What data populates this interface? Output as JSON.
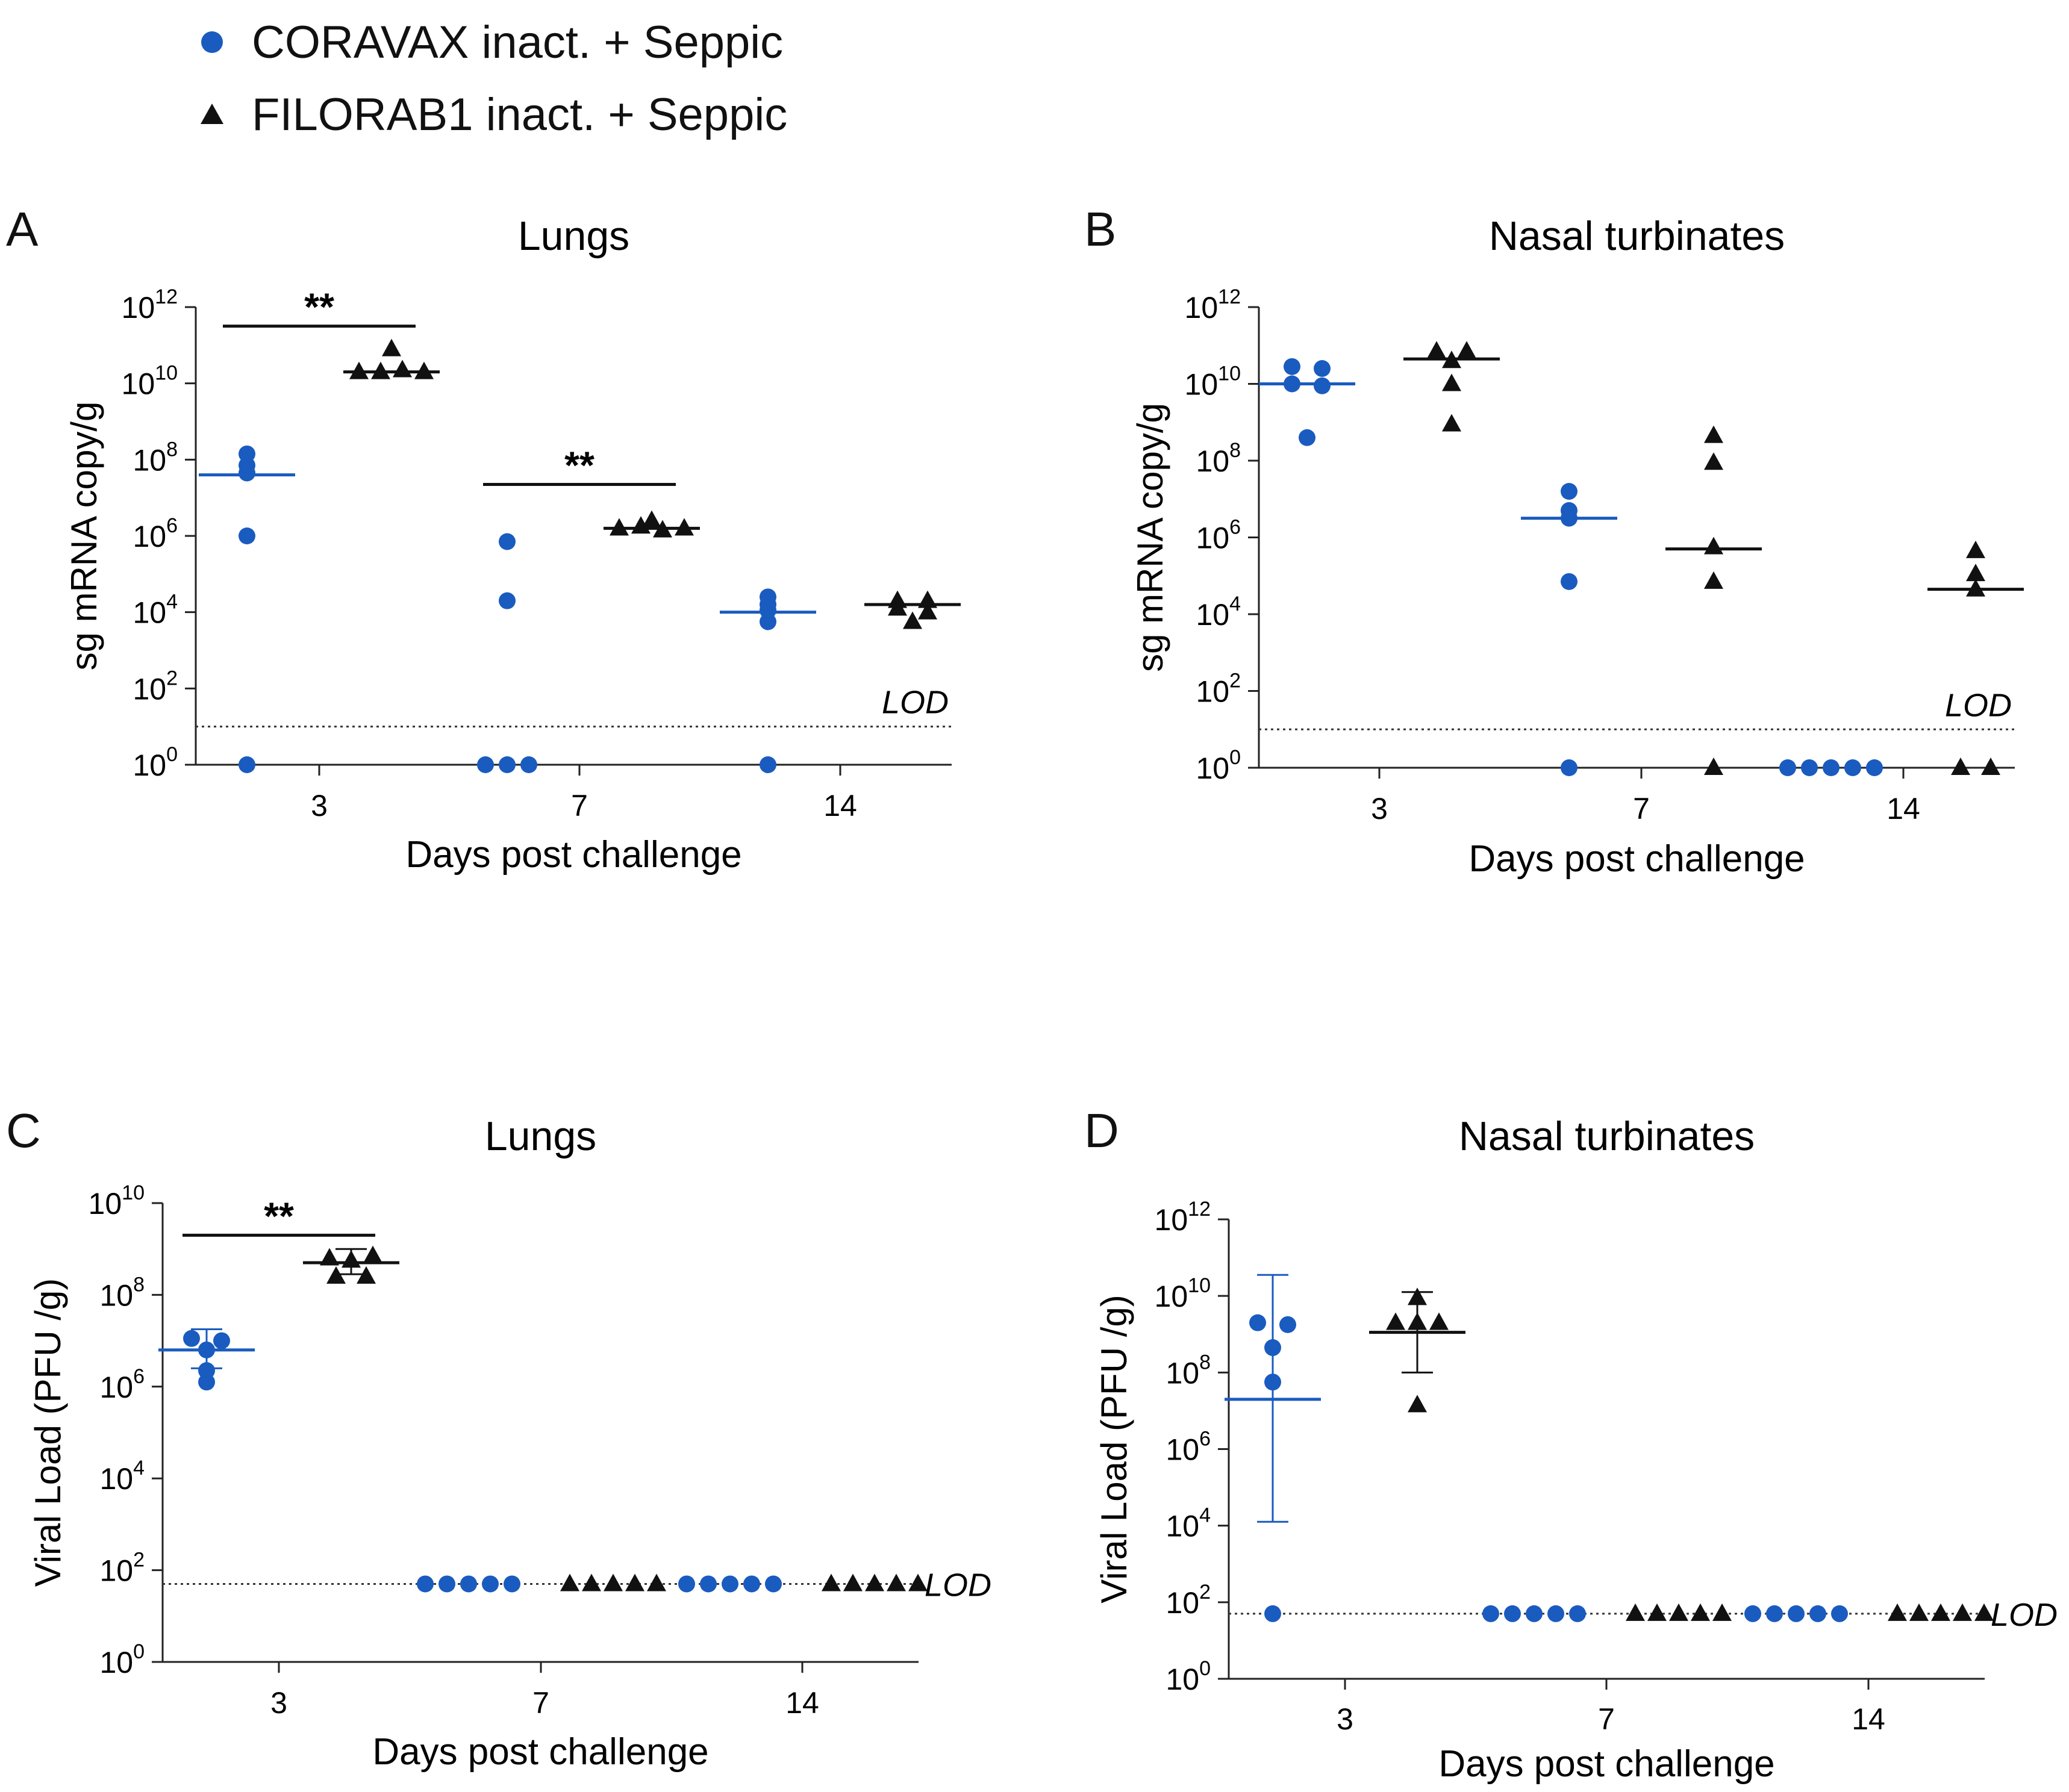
{
  "legend": [
    {
      "label": "CORAVAX inact. + Seppic",
      "marker": "circle",
      "color": "#1a5bbf"
    },
    {
      "label": "FILORAB1 inact. + Seppic",
      "marker": "triangle",
      "color": "#111111"
    }
  ],
  "panels": [
    {
      "letter": "A"
    },
    {
      "letter": "B"
    },
    {
      "letter": "C"
    },
    {
      "letter": "D"
    }
  ],
  "chart_data": [
    {
      "type": "scatter",
      "panel": "A",
      "title": "Lungs",
      "xlabel": "Days post challenge",
      "ylabel": "sg mRNA copy/g",
      "yscale": "log10",
      "ylim_exp": [
        0,
        12
      ],
      "ytick_exponents": [
        0,
        2,
        4,
        6,
        8,
        10,
        12
      ],
      "categories": [
        "3",
        "7",
        "14"
      ],
      "lod": {
        "value_exp": 1,
        "label": "LOD",
        "label_pos": "above-right"
      },
      "series": [
        {
          "name": "CORAVAX inact. + Seppic",
          "marker": "circle",
          "color": "#1a5bbf",
          "groups": [
            {
              "day": "3",
              "log_values": [
                8.15,
                7.65,
                7.85,
                6.0,
                0
              ],
              "median_log": 7.6
            },
            {
              "day": "7",
              "log_values": [
                5.85,
                4.3,
                0,
                0,
                0
              ],
              "median_log": null
            },
            {
              "day": "14",
              "log_values": [
                4.05,
                4.4,
                4.2,
                3.75,
                0
              ],
              "median_log": 4.0
            }
          ]
        },
        {
          "name": "FILORAB1 inact. + Seppic",
          "marker": "triangle",
          "color": "#111111",
          "groups": [
            {
              "day": "3",
              "log_values": [
                10.3,
                10.9,
                10.3,
                10.35,
                10.3
              ],
              "median_log": 10.3
            },
            {
              "day": "7",
              "log_values": [
                6.2,
                6.4,
                6.25,
                6.15,
                6.2
              ],
              "median_log": 6.2
            },
            {
              "day": "14",
              "log_values": [
                3.75,
                4.3,
                4.1,
                4.3,
                4.0
              ],
              "median_log": 4.2
            }
          ]
        }
      ],
      "significance": [
        {
          "day": "3",
          "label": "**",
          "y_log": 11.5
        },
        {
          "day": "7",
          "label": "**",
          "y_log": 7.35
        }
      ]
    },
    {
      "type": "scatter",
      "panel": "B",
      "title": "Nasal turbinates",
      "xlabel": "Days post challenge",
      "ylabel": "sg mRNA copy/g",
      "yscale": "log10",
      "ylim_exp": [
        0,
        12
      ],
      "ytick_exponents": [
        0,
        2,
        4,
        6,
        8,
        10,
        12
      ],
      "categories": [
        "3",
        "7",
        "14"
      ],
      "lod": {
        "value_exp": 1,
        "label": "LOD",
        "label_pos": "above-right"
      },
      "series": [
        {
          "name": "CORAVAX inact. + Seppic",
          "marker": "circle",
          "color": "#1a5bbf",
          "groups": [
            {
              "day": "3",
              "log_values": [
                10.45,
                10.0,
                10.4,
                9.95,
                8.6
              ],
              "median_log": 10.0
            },
            {
              "day": "7",
              "log_values": [
                7.2,
                6.5,
                6.7,
                4.85,
                0
              ],
              "median_log": 6.5
            },
            {
              "day": "14",
              "log_values": [
                0,
                0,
                0,
                0,
                0
              ],
              "median_log": null
            }
          ]
        },
        {
          "name": "FILORAB1 inact. + Seppic",
          "marker": "triangle",
          "color": "#111111",
          "groups": [
            {
              "day": "3",
              "log_values": [
                10.85,
                10.6,
                10.85,
                10.0,
                8.95
              ],
              "median_log": 10.65
            },
            {
              "day": "7",
              "log_values": [
                8.65,
                7.95,
                5.75,
                4.85,
                0
              ],
              "median_log": 5.7
            },
            {
              "day": "14",
              "log_values": [
                5.65,
                5.05,
                4.65,
                0,
                0
              ],
              "median_log": 4.65
            }
          ]
        }
      ],
      "significance": []
    },
    {
      "type": "scatter",
      "panel": "C",
      "title": "Lungs",
      "xlabel": "Days post challenge",
      "ylabel": "Viral Load (PFU /g)",
      "yscale": "log10",
      "ylim_exp": [
        0,
        10
      ],
      "ytick_exponents": [
        0,
        2,
        4,
        6,
        8,
        10
      ],
      "categories": [
        "3",
        "7",
        "14"
      ],
      "lod": {
        "value_exp": 1.7,
        "label": "LOD",
        "label_pos": "right"
      },
      "series": [
        {
          "name": "CORAVAX inact. + Seppic",
          "marker": "circle",
          "color": "#1a5bbf",
          "groups": [
            {
              "day": "3",
              "log_values": [
                7.05,
                7.0,
                6.8,
                6.35,
                6.1
              ],
              "mean_log": 6.8,
              "err_log": [
                6.4,
                7.25
              ]
            },
            {
              "day": "7",
              "log_values": [
                1.7,
                1.7,
                1.7,
                1.7,
                1.7
              ]
            },
            {
              "day": "14",
              "log_values": [
                1.7,
                1.7,
                1.7,
                1.7,
                1.7
              ]
            }
          ]
        },
        {
          "name": "FILORAB1 inact. + Seppic",
          "marker": "triangle",
          "color": "#111111",
          "groups": [
            {
              "day": "3",
              "log_values": [
                8.8,
                8.75,
                8.85,
                8.4,
                8.4
              ],
              "mean_log": 8.7,
              "err_log": [
                8.45,
                9.0
              ]
            },
            {
              "day": "7",
              "log_values": [
                1.7,
                1.7,
                1.7,
                1.7,
                1.7
              ]
            },
            {
              "day": "14",
              "log_values": [
                1.7,
                1.7,
                1.7,
                1.7,
                1.7
              ]
            }
          ]
        }
      ],
      "significance": [
        {
          "day": "3",
          "label": "**",
          "y_log": 9.3
        }
      ]
    },
    {
      "type": "scatter",
      "panel": "D",
      "title": "Nasal turbinates",
      "xlabel": "Days post challenge",
      "ylabel": "Viral Load (PFU /g)",
      "yscale": "log10",
      "ylim_exp": [
        0,
        12
      ],
      "ytick_exponents": [
        0,
        2,
        4,
        6,
        8,
        10,
        12
      ],
      "categories": [
        "3",
        "7",
        "14"
      ],
      "lod": {
        "value_exp": 1.7,
        "label": "LOD",
        "label_pos": "right"
      },
      "series": [
        {
          "name": "CORAVAX inact. + Seppic",
          "marker": "circle",
          "color": "#1a5bbf",
          "groups": [
            {
              "day": "3",
              "log_values": [
                9.3,
                9.25,
                8.65,
                7.75,
                1.7
              ],
              "mean_log": 7.3,
              "err_log": [
                4.1,
                10.55
              ]
            },
            {
              "day": "7",
              "log_values": [
                1.7,
                1.7,
                1.7,
                1.7,
                1.7
              ]
            },
            {
              "day": "14",
              "log_values": [
                1.7,
                1.7,
                1.7,
                1.7,
                1.7
              ]
            }
          ]
        },
        {
          "name": "FILORAB1 inact. + Seppic",
          "marker": "triangle",
          "color": "#111111",
          "groups": [
            {
              "day": "3",
              "log_values": [
                9.3,
                9.3,
                9.3,
                9.95,
                7.15
              ],
              "mean_log": 9.05,
              "err_log": [
                8.0,
                10.1
              ]
            },
            {
              "day": "7",
              "log_values": [
                1.7,
                1.7,
                1.7,
                1.7,
                1.7
              ]
            },
            {
              "day": "14",
              "log_values": [
                1.7,
                1.7,
                1.7,
                1.7,
                1.7
              ]
            }
          ]
        }
      ],
      "significance": []
    }
  ]
}
